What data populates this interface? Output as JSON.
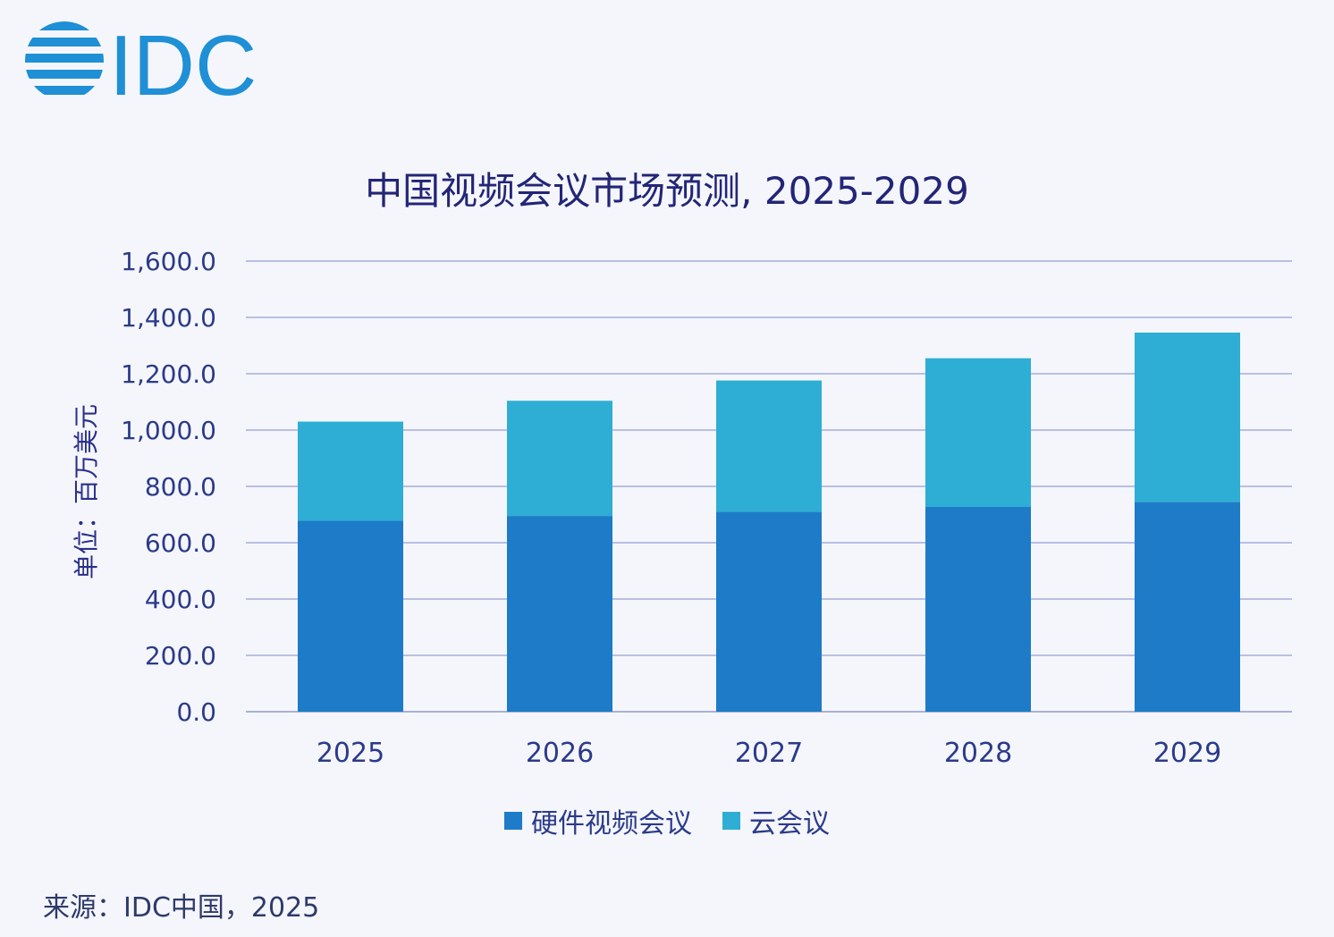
{
  "logo": {
    "text": "IDC",
    "color": "#1f8fd6"
  },
  "chart_data": {
    "type": "bar",
    "stacked": true,
    "title": "中国视频会议市场预测, 2025-2029",
    "ylabel": "单位：百万美元",
    "xlabel": "",
    "categories": [
      "2025",
      "2026",
      "2027",
      "2028",
      "2029"
    ],
    "series": [
      {
        "name": "硬件视频会议",
        "values": [
          678,
          695,
          710,
          727,
          745
        ],
        "color": "#1d7bc8"
      },
      {
        "name": "云会议",
        "values": [
          352,
          409,
          466,
          528,
          601
        ],
        "color": "#2eaed4"
      }
    ],
    "ylim": [
      0,
      1600
    ],
    "yticks": [
      "0.0",
      "200.0",
      "400.0",
      "600.0",
      "800.0",
      "1,000.0",
      "1,200.0",
      "1,400.0",
      "1,600.0"
    ],
    "grid": true,
    "legend_position": "bottom"
  },
  "source": "来源：IDC中国，2025"
}
